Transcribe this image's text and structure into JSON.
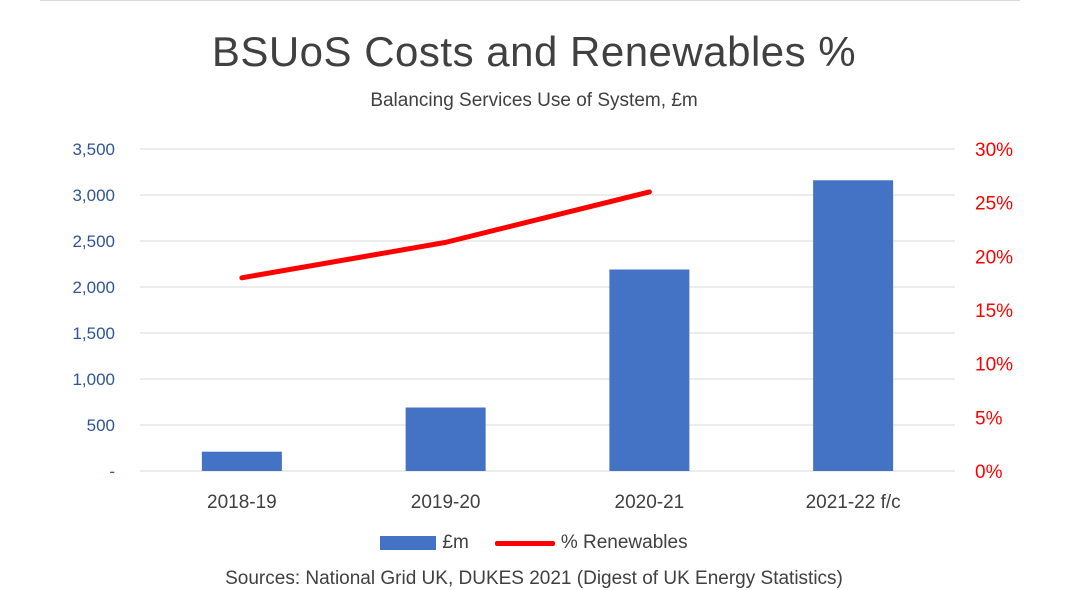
{
  "colors": {
    "bar": "#4472C4",
    "line": "#FF0000",
    "grid": "#D9D9D9",
    "text": "#404040"
  },
  "chart_data": {
    "type": "bar",
    "title": "BSUoS Costs and Renewables %",
    "subtitle": "Balancing Services Use of System, £m",
    "categories": [
      "2018-19",
      "2019-20",
      "2020-21",
      "2021-22 f/c"
    ],
    "series": [
      {
        "name": "£m",
        "type": "bar",
        "axis": "left",
        "values": [
          210,
          690,
          2190,
          3160
        ]
      },
      {
        "name": "% Renewables",
        "type": "line",
        "axis": "right",
        "values": [
          0.18,
          0.213,
          0.26,
          null
        ]
      }
    ],
    "y_left": {
      "ylim": [
        0,
        3500
      ],
      "ticks": [
        0,
        500,
        1000,
        1500,
        2000,
        2500,
        3000,
        3500
      ],
      "tick_labels": [
        "-",
        "500",
        "1,000",
        "1,500",
        "2,000",
        "2,500",
        "3,000",
        "3,500"
      ]
    },
    "y_right": {
      "ylim": [
        0,
        0.3
      ],
      "ticks": [
        0,
        0.05,
        0.1,
        0.15,
        0.2,
        0.25,
        0.3
      ],
      "tick_labels": [
        "0%",
        "5%",
        "10%",
        "15%",
        "20%",
        "25%",
        "30%"
      ]
    },
    "grid": true,
    "legend": "bottom",
    "source": "Sources: National Grid UK, DUKES 2021 (Digest of UK Energy Statistics)"
  }
}
